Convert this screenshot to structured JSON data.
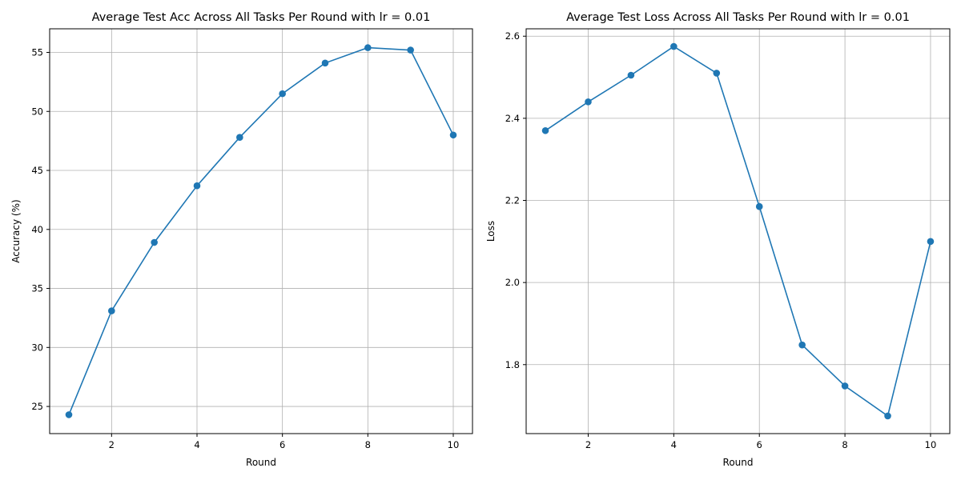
{
  "chart_data": [
    {
      "type": "line",
      "title": "Average Test Acc Across All Tasks Per Round with lr = 0.01",
      "xlabel": "Round",
      "ylabel": "Accuracy (%)",
      "xlim": [
        0.55,
        10.45
      ],
      "ylim": [
        22.7,
        57.0
      ],
      "xticks": [
        2,
        4,
        6,
        8,
        10
      ],
      "yticks": [
        25,
        30,
        35,
        40,
        45,
        50,
        55
      ],
      "grid": true,
      "marker": "circle",
      "color": "#1f77b4",
      "series": [
        {
          "x": [
            1,
            2,
            3,
            4,
            5,
            6,
            7,
            8,
            9,
            10
          ],
          "values": [
            24.3,
            33.1,
            38.9,
            43.7,
            47.8,
            51.5,
            54.1,
            55.4,
            55.2,
            48.0
          ]
        }
      ]
    },
    {
      "type": "line",
      "title": "Average Test Loss Across All Tasks Per Round with lr = 0.01",
      "xlabel": "Round",
      "ylabel": "Loss",
      "xlim": [
        0.55,
        10.45
      ],
      "ylim": [
        1.632,
        2.618
      ],
      "xticks": [
        2,
        4,
        6,
        8,
        10
      ],
      "yticks": [
        1.8,
        2.0,
        2.2,
        2.4,
        2.6
      ],
      "grid": true,
      "marker": "circle",
      "color": "#1f77b4",
      "series": [
        {
          "x": [
            1,
            2,
            3,
            4,
            5,
            6,
            7,
            8,
            9,
            10
          ],
          "values": [
            2.37,
            2.44,
            2.505,
            2.575,
            2.51,
            2.185,
            1.848,
            1.748,
            1.675,
            2.1
          ]
        }
      ]
    }
  ]
}
